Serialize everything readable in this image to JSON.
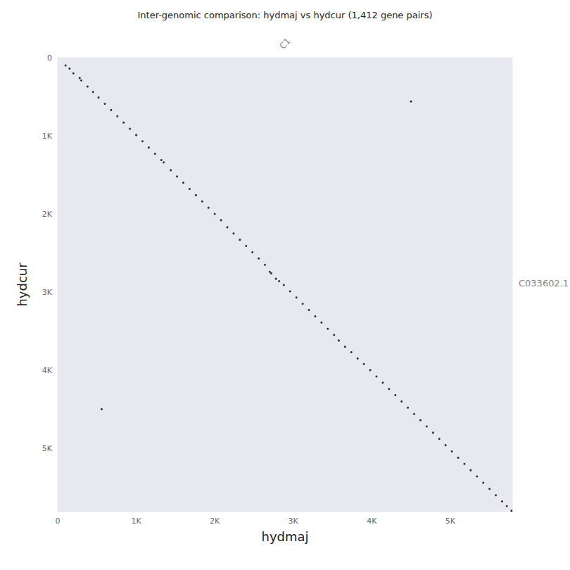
{
  "chart_data": {
    "type": "scatter",
    "title": "Inter-genomic comparison: hydmaj vs hydcur (1,412 gene pairs)",
    "x_label": "hydmaj",
    "y_label": "hydcur",
    "x_chromosomes": [
      "C1"
    ],
    "y_chromosomes": [
      "C033602.1"
    ],
    "color": "#000000",
    "marker": "circle",
    "grid": false,
    "xlim": [
      0,
      5790
    ],
    "ylim": [
      0,
      5810
    ],
    "xticks": [
      0,
      {
        "value": 1000,
        "label": "1K"
      },
      {
        "value": 2000,
        "label": "2K"
      },
      {
        "value": 3000,
        "label": "3K"
      },
      {
        "value": 4000,
        "label": "4K"
      },
      {
        "value": 5000,
        "label": "5K"
      }
    ],
    "yticks": [
      0,
      {
        "value": 1000,
        "label": "1K"
      },
      {
        "value": 2000,
        "label": "2K"
      },
      {
        "value": 3000,
        "label": "3K"
      },
      {
        "value": 4000,
        "label": "4K"
      },
      {
        "value": 5000,
        "label": "5K"
      }
    ],
    "x": [
      100,
      150,
      200,
      280,
      300,
      380,
      450,
      520,
      600,
      680,
      760,
      840,
      920,
      1000,
      1080,
      1160,
      1240,
      1320,
      1350,
      1440,
      1520,
      1600,
      1680,
      1760,
      1840,
      1920,
      2000,
      2080,
      2160,
      2240,
      2320,
      2400,
      2480,
      2560,
      2640,
      2700,
      2720,
      2780,
      2820,
      2880,
      2960,
      3040,
      3120,
      3200,
      3280,
      3360,
      3440,
      3520,
      3580,
      3660,
      3740,
      3820,
      3900,
      3980,
      4060,
      4140,
      4220,
      4300,
      4380,
      4460,
      4540,
      4620,
      4700,
      4780,
      4860,
      4940,
      5020,
      5100,
      5180,
      5260,
      5340,
      5420,
      5500,
      5580,
      5660,
      5720,
      5780,
      4500,
      560
    ],
    "values": [
      100,
      140,
      200,
      260,
      290,
      370,
      440,
      510,
      590,
      670,
      750,
      830,
      910,
      990,
      1070,
      1150,
      1230,
      1310,
      1340,
      1440,
      1520,
      1600,
      1680,
      1760,
      1840,
      1920,
      2000,
      2080,
      2170,
      2250,
      2330,
      2410,
      2490,
      2570,
      2650,
      2740,
      2760,
      2830,
      2860,
      2910,
      2990,
      3070,
      3150,
      3230,
      3310,
      3390,
      3470,
      3550,
      3620,
      3700,
      3770,
      3850,
      3920,
      4000,
      4080,
      4160,
      4240,
      4320,
      4400,
      4480,
      4560,
      4640,
      4720,
      4800,
      4880,
      4960,
      5040,
      5120,
      5200,
      5280,
      5360,
      5440,
      5520,
      5600,
      5680,
      5740,
      5800,
      560,
      4500
    ]
  }
}
